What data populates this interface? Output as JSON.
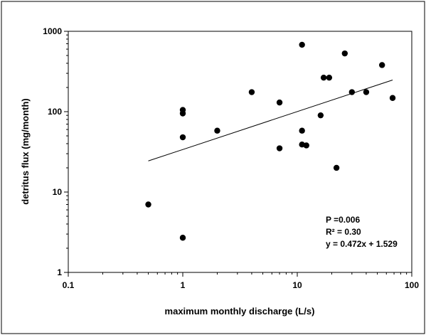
{
  "chart_data": {
    "type": "scatter",
    "title": "",
    "xlabel": "maximum monthly discharge (L/s)",
    "ylabel": "detritus flux (mg/month)",
    "x_scale": "log",
    "y_scale": "log",
    "xlim": [
      0.1,
      100
    ],
    "ylim": [
      1,
      1000
    ],
    "x_ticks": [
      "0.1",
      "1",
      "10",
      "100"
    ],
    "y_ticks": [
      "1",
      "10",
      "100",
      "1000"
    ],
    "grid": false,
    "series": [
      {
        "marker": "filled-circle",
        "points": [
          {
            "x": 0.5,
            "y": 7
          },
          {
            "x": 1,
            "y": 2.7
          },
          {
            "x": 1,
            "y": 48
          },
          {
            "x": 1,
            "y": 95
          },
          {
            "x": 1,
            "y": 105
          },
          {
            "x": 2,
            "y": 58
          },
          {
            "x": 4,
            "y": 175
          },
          {
            "x": 7,
            "y": 35
          },
          {
            "x": 7,
            "y": 130
          },
          {
            "x": 11,
            "y": 680
          },
          {
            "x": 11,
            "y": 58
          },
          {
            "x": 11,
            "y": 39
          },
          {
            "x": 12,
            "y": 38
          },
          {
            "x": 16,
            "y": 90
          },
          {
            "x": 17,
            "y": 265
          },
          {
            "x": 19,
            "y": 265
          },
          {
            "x": 22,
            "y": 20
          },
          {
            "x": 26,
            "y": 530
          },
          {
            "x": 30,
            "y": 175
          },
          {
            "x": 40,
            "y": 175
          },
          {
            "x": 55,
            "y": 380
          },
          {
            "x": 68,
            "y": 148
          }
        ]
      }
    ],
    "trendline": {
      "type": "linear-log-log",
      "slope": 0.472,
      "intercept": 1.529,
      "x_range": [
        0.5,
        68
      ]
    },
    "annotations": [
      "P =0.006",
      "R² = 0.30",
      "y = 0.472x + 1.529"
    ]
  }
}
